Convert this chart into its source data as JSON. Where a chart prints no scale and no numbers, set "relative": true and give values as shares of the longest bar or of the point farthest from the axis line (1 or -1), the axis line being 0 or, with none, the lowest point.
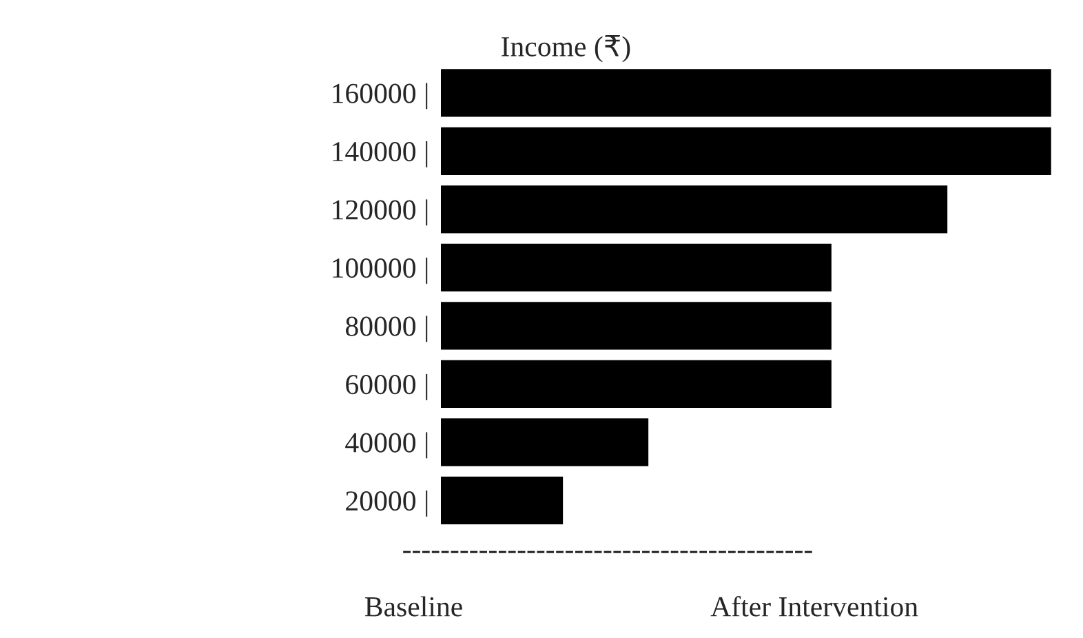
{
  "chart_data": {
    "type": "bar",
    "orientation": "horizontal",
    "relative": true,
    "title": "Income (₹)",
    "categories": [
      "160000 |",
      "140000 |",
      "120000 |",
      "100000 |",
      "80000 |",
      "60000 |",
      "40000 |",
      "20000 |"
    ],
    "values": [
      1,
      1,
      0.83,
      0.64,
      0.64,
      0.64,
      0.34,
      0.2
    ],
    "color": "#000000",
    "annotations": [
      "-------------------------------------------",
      "Baseline",
      "After Intervention"
    ]
  }
}
